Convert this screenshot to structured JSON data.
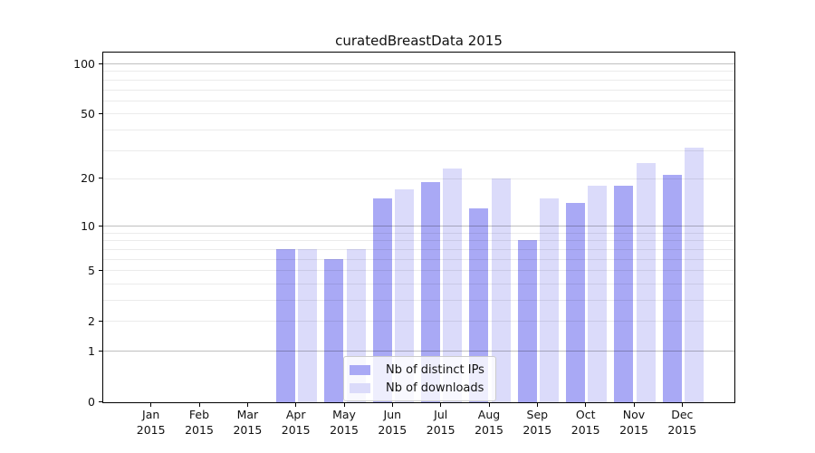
{
  "chart_data": {
    "type": "bar",
    "title": "curatedBreastData 2015",
    "categories": [
      "Jan",
      "Feb",
      "Mar",
      "Apr",
      "May",
      "Jun",
      "Jul",
      "Aug",
      "Sep",
      "Oct",
      "Nov",
      "Dec"
    ],
    "x_year": "2015",
    "series": [
      {
        "name": "Nb of distinct IPs",
        "color": "#a9a9f5",
        "values": [
          0,
          0,
          0,
          7,
          6,
          15,
          19,
          13,
          8,
          14,
          18,
          21
        ]
      },
      {
        "name": "Nb of downloads",
        "color": "#dbdbfa",
        "values": [
          0,
          0,
          0,
          7,
          7,
          17,
          23,
          20,
          15,
          18,
          25,
          31
        ]
      }
    ],
    "y_axis": {
      "scale": "log10(1+x)",
      "tick_values": [
        0,
        1,
        2,
        5,
        10,
        20,
        50,
        100
      ],
      "grid_minor_values": [
        2,
        3,
        4,
        5,
        6,
        7,
        8,
        9,
        20,
        30,
        40,
        50,
        60,
        70,
        80,
        90
      ],
      "grid_major_values": [
        1,
        10,
        100
      ],
      "ylim": [
        0,
        117
      ]
    },
    "legend": {
      "position": "bottom-center",
      "entries": [
        "Nb of distinct IPs",
        "Nb of downloads"
      ]
    },
    "colors": {
      "grid_minor_on_white": "#ebebeb",
      "grid_major_on_white": "#bfbfbf",
      "axis": "#000000",
      "text": "#111111",
      "background": "#ffffff"
    }
  }
}
